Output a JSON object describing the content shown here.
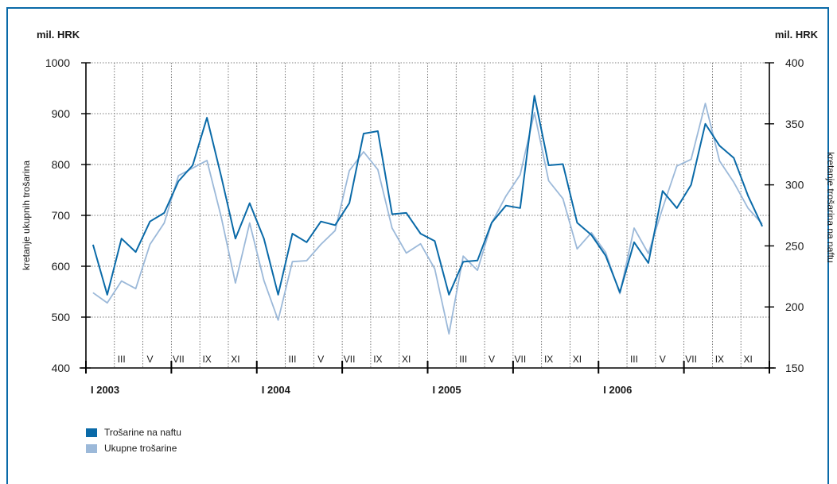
{
  "colors": {
    "frame": "#0a6aa8",
    "nafta": "#0a6aa8",
    "ukupne": "#9cb9d9",
    "axis": "#000000",
    "grid": "#555555"
  },
  "units": {
    "left": "mil. HRK",
    "right": "mil. HRK"
  },
  "legend": [
    {
      "label": "Trošarine na naftu",
      "color": "#0a6aa8"
    },
    {
      "label": "Ukupne trošarine",
      "color": "#9cb9d9"
    }
  ],
  "chart_data": {
    "type": "line",
    "title": "",
    "xlabel": "",
    "ylabel_left": "kretanje ukupnih trošarina",
    "ylabel_right": "kretanje trošarina na naftu",
    "ylim_left": [
      400,
      1000
    ],
    "ylim_right": [
      150,
      400
    ],
    "yticks_left": [
      "400",
      "500",
      "600",
      "700",
      "800",
      "900",
      "1000"
    ],
    "yticks_right": [
      "150",
      "200",
      "250",
      "300",
      "350",
      "400"
    ],
    "x_start": "2003-01",
    "x_end": "2006-12",
    "month_ticks": [
      "III",
      "V",
      "VII",
      "IX",
      "XI",
      "III",
      "V",
      "VII",
      "IX",
      "XI",
      "III",
      "V",
      "VII",
      "IX",
      "XI",
      "III",
      "V",
      "VII",
      "IX",
      "XI"
    ],
    "year_labels": [
      "I 2003",
      "I 2004",
      "I 2005",
      "I 2006"
    ],
    "grid": true,
    "legend_position": "bottom-left",
    "series": [
      {
        "name": "Trošarine na naftu",
        "axis": "right",
        "values": [
          251,
          210,
          256,
          245,
          270,
          277,
          303,
          316,
          355,
          307,
          256,
          285,
          256,
          210,
          260,
          253,
          270,
          267,
          285,
          342,
          344,
          276,
          277,
          260,
          254,
          210,
          237,
          238,
          269,
          283,
          281,
          373,
          316,
          317,
          269,
          259,
          242,
          212,
          253,
          236,
          295,
          281,
          300,
          350,
          332,
          322,
          291,
          266
        ]
      },
      {
        "name": "Ukupne trošarine",
        "axis": "left",
        "values": [
          548,
          528,
          571,
          556,
          643,
          685,
          778,
          793,
          808,
          697,
          567,
          685,
          572,
          494,
          609,
          611,
          643,
          670,
          788,
          825,
          790,
          675,
          626,
          644,
          595,
          467,
          620,
          592,
          685,
          738,
          780,
          902,
          768,
          733,
          634,
          666,
          627,
          546,
          675,
          625,
          714,
          797,
          810,
          920,
          807,
          765,
          714,
          683
        ]
      }
    ]
  }
}
